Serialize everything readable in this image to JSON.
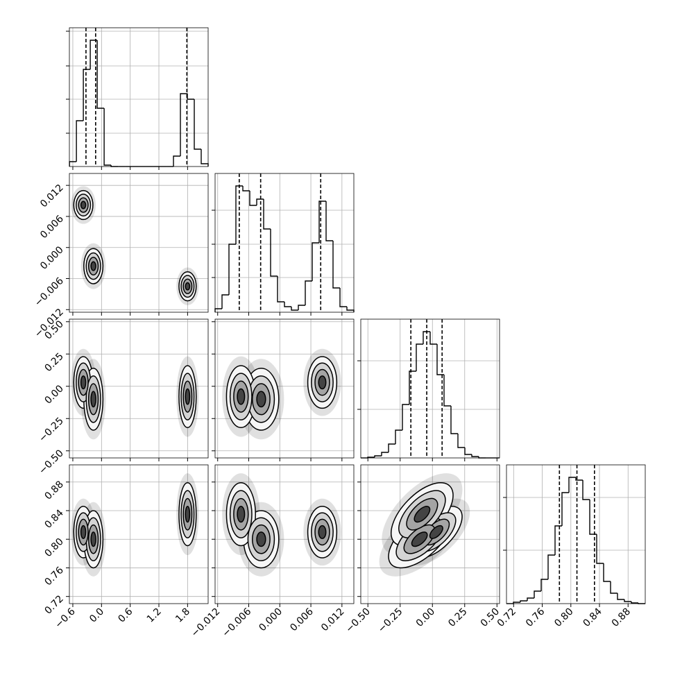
{
  "chart_data": {
    "type": "corner",
    "params": [
      {
        "xlim": [
          -0.672,
          2.23
        ],
        "xticks": [
          {
            "value": -0.6,
            "label": "−0.6"
          },
          {
            "value": 0,
            "label": "0.0"
          },
          0.6,
          1.2,
          1.8
        ]
      },
      {
        "xlim": [
          -0.0125,
          0.0143
        ],
        "xticks": [
          {
            "value": -0.012,
            "label": "−0.012"
          },
          {
            "value": -0.006,
            "label": "−0.006"
          },
          {
            "value": 0,
            "label": "0.000"
          },
          0.006,
          0.012
        ]
      },
      {
        "xlim": [
          -0.555,
          0.52
        ],
        "xticks": [
          {
            "value": -0.5,
            "label": "−0.50"
          },
          {
            "value": -0.25,
            "label": "−0.25"
          },
          {
            "value": 0,
            "label": "0.00"
          },
          0.25,
          {
            "value": 0.5,
            "label": "0.50"
          }
        ]
      },
      {
        "xlim": [
          0.71,
          0.904
        ],
        "xticks": [
          0.72,
          0.76,
          {
            "value": 0.8,
            "label": "0.80"
          },
          0.84,
          0.88
        ]
      }
    ],
    "histograms": [
      {
        "bins": [
          -0.67,
          -0.525,
          -0.38,
          -0.235,
          -0.09,
          0.055,
          0.2,
          0.345,
          0.49,
          0.635,
          0.78,
          0.925,
          1.07,
          1.215,
          1.36,
          1.505,
          1.65,
          1.795,
          1.94,
          2.085,
          2.23
        ],
        "counts": [
          7,
          66,
          140,
          182,
          84,
          2,
          0,
          0,
          0,
          0,
          0,
          0,
          0,
          0,
          0,
          15,
          105,
          97,
          25,
          4
        ],
        "ylim": [
          0,
          200
        ],
        "yticks": [
          48,
          97,
          145,
          195
        ],
        "quantiles": [
          -0.325,
          -0.123,
          1.785
        ]
      },
      {
        "bins": [
          -0.0125,
          -0.01116,
          -0.00982,
          -0.00848,
          -0.00714,
          -0.0058,
          -0.00446,
          -0.00312,
          -0.00178,
          -0.00044,
          0.0009,
          0.00224,
          0.00358,
          0.00492,
          0.00626,
          0.0076,
          0.00894,
          0.01028,
          0.01162,
          0.01296,
          0.0143
        ],
        "counts": [
          5,
          25,
          98,
          182,
          175,
          154,
          163,
          120,
          52,
          15,
          8,
          3,
          10,
          45,
          100,
          160,
          103,
          35,
          8,
          3
        ],
        "ylim": [
          0,
          200
        ],
        "yticks": [
          50,
          98,
          147
        ],
        "quantiles": [
          -0.00783,
          -0.0037,
          0.0079
        ]
      },
      {
        "bins": [
          -0.555,
          -0.50125,
          -0.4475,
          -0.39375,
          -0.34,
          -0.28625,
          -0.2325,
          -0.17875,
          -0.125,
          -0.07125,
          -0.0175,
          0.03625,
          0.09,
          0.14375,
          0.1975,
          0.25125,
          0.305,
          0.35875,
          0.4125,
          0.46625,
          0.52
        ],
        "counts": [
          0,
          1,
          3,
          8,
          20,
          40,
          77,
          125,
          164,
          182,
          164,
          120,
          75,
          35,
          15,
          5,
          2,
          0,
          0,
          0
        ],
        "ylim": [
          0,
          200
        ],
        "yticks": [
          70,
          140
        ],
        "quantiles": [
          -0.167,
          -0.044,
          0.075
        ]
      },
      {
        "bins": [
          0.71,
          0.7197,
          0.7294,
          0.7391,
          0.7488,
          0.7585,
          0.7682,
          0.7779,
          0.7876,
          0.7973,
          0.807,
          0.8167,
          0.8264,
          0.8361,
          0.8458,
          0.8555,
          0.8652,
          0.8749,
          0.8846,
          0.8943,
          0.904
        ],
        "counts": [
          0,
          2,
          4,
          8,
          18,
          35,
          70,
          112,
          160,
          182,
          178,
          150,
          100,
          58,
          32,
          15,
          6,
          3,
          1,
          0
        ],
        "ylim": [
          0,
          200
        ],
        "yticks": [
          77,
          153
        ],
        "quantiles": [
          0.784,
          0.8085,
          0.833
        ]
      }
    ],
    "components": [
      {
        "mean": [
          -0.38,
          0.0082,
          0.03,
          0.81
        ],
        "sd": [
          0.1,
          0.0014,
          0.1,
          0.018
        ],
        "rho23": 0.6
      },
      {
        "mean": [
          -0.17,
          -0.0036,
          -0.1,
          0.8
        ],
        "sd": [
          0.1,
          0.0017,
          0.12,
          0.02
        ],
        "rho23": 0.6
      },
      {
        "mean": [
          1.8,
          -0.0075,
          -0.08,
          0.835
        ],
        "sd": [
          0.09,
          0.0014,
          0.12,
          0.022
        ],
        "rho23": 0.6
      }
    ],
    "grid": true,
    "color": "#000000"
  }
}
